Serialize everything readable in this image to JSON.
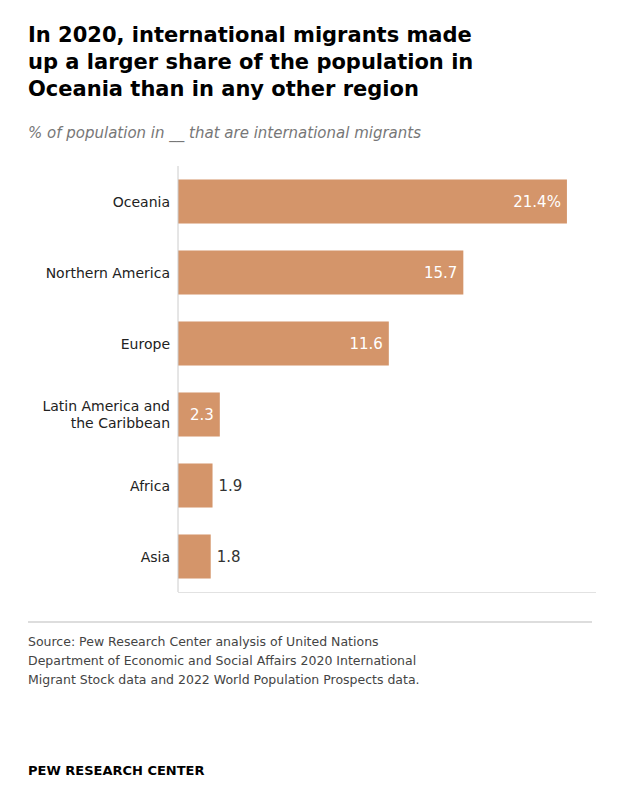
{
  "chart_data": {
    "type": "bar",
    "orientation": "horizontal",
    "title": "In 2020, international migrants made\nup a larger share of the population in\nOceania than in any other region",
    "subtitle": "% of population in __ that are international migrants",
    "categories": [
      "Oceania",
      "Northern America",
      "Europe",
      "Latin America and\nthe Caribbean",
      "Africa",
      "Asia"
    ],
    "values": [
      21.4,
      15.7,
      11.6,
      2.3,
      1.9,
      1.8
    ],
    "value_labels": [
      "21.4%",
      "15.7",
      "11.6",
      "2.3",
      "1.9",
      "1.8"
    ],
    "data_labels": true,
    "color": "#d4956a",
    "xlim": [
      0,
      23
    ],
    "tick_labels": "y",
    "grid": false,
    "source": "Source: Pew Research Center analysis of United Nations\nDepartment of Economic and Social Affairs 2020 International\nMigrant Stock data and 2022 World Population Prospects data.",
    "footer": "PEW RESEARCH CENTER"
  }
}
